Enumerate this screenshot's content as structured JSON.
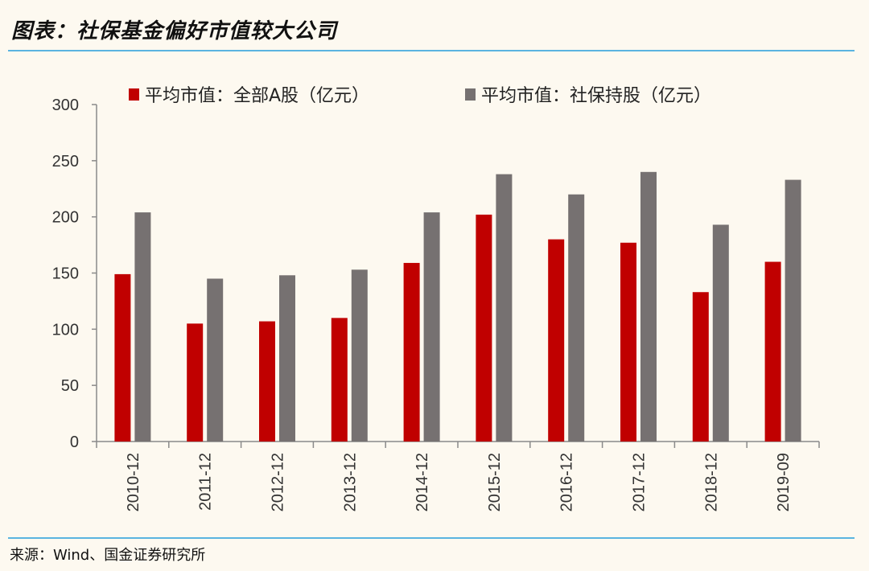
{
  "title": "图表：社保基金偏好市值较大公司",
  "source": "来源：Wind、国金证券研究所",
  "chart_data": {
    "type": "bar",
    "title": "",
    "xlabel": "",
    "ylabel": "",
    "ylim": [
      0,
      300
    ],
    "yticks": [
      0,
      50,
      100,
      150,
      200,
      250,
      300
    ],
    "categories": [
      "2010-12",
      "2011-12",
      "2012-12",
      "2013-12",
      "2014-12",
      "2015-12",
      "2016-12",
      "2017-12",
      "2018-12",
      "2019-09"
    ],
    "series": [
      {
        "name": "平均市值：全部A股（亿元）",
        "color": "#c00000",
        "values": [
          149,
          105,
          107,
          110,
          159,
          202,
          180,
          177,
          133,
          160
        ]
      },
      {
        "name": "平均市值：社保持股（亿元）",
        "color": "#767171",
        "values": [
          204,
          145,
          148,
          153,
          204,
          238,
          220,
          240,
          193,
          233
        ]
      }
    ],
    "legend_position": "top",
    "grid": false
  }
}
